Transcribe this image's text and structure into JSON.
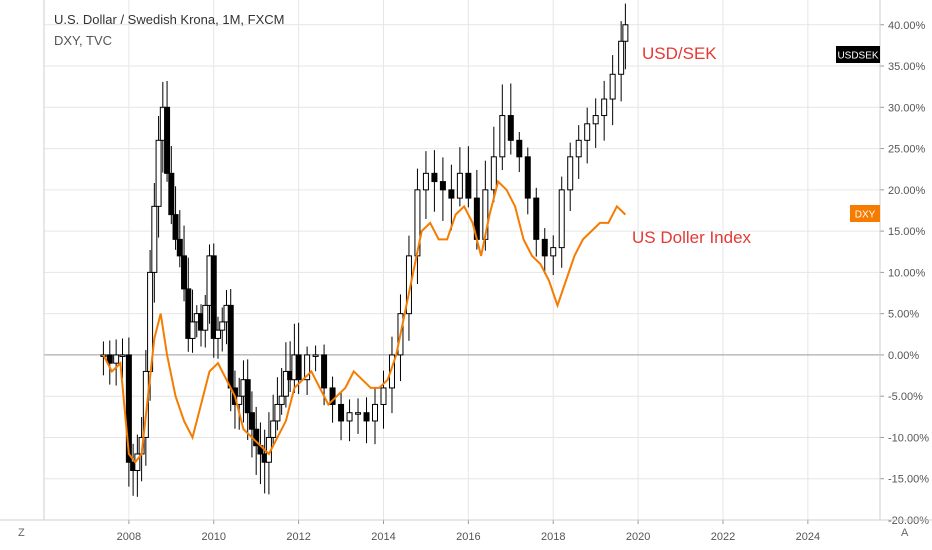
{
  "header": {
    "title": "U.S. Dollar / Swedish Krona, 1M, FXCM",
    "subtitle": "DXY, TVC"
  },
  "corner_left_label": "Z",
  "corner_right_label": "A",
  "annotations": {
    "usdsek": "USD/SEK",
    "dxy": "US Doller Index"
  },
  "colors": {
    "candle": "#000000",
    "dxy_line": "#f57c00",
    "usdsek_text": "#e53935",
    "zero_line": "#9e9e9e",
    "grid": "#e6e6e6"
  },
  "chart_data": {
    "type": "line",
    "y_unit": "%",
    "ylim": [
      -20,
      43
    ],
    "y_ticks": [
      "40.00%",
      "35.00%",
      "30.00%",
      "25.00%",
      "20.00%",
      "15.00%",
      "10.00%",
      "5.00%",
      "0.00%",
      "-5.00%",
      "-10.00%",
      "-15.00%",
      "-20.00%"
    ],
    "y_tick_values": [
      40,
      35,
      30,
      25,
      20,
      15,
      10,
      5,
      0,
      -5,
      -10,
      -15,
      -20
    ],
    "x_ticks": [
      "2008",
      "2010",
      "2012",
      "2014",
      "2016",
      "2018",
      "2020",
      "2022",
      "2024"
    ],
    "x_tick_values": [
      2008,
      2010,
      2012,
      2014,
      2016,
      2018,
      2020,
      2022,
      2024
    ],
    "xlim": [
      2006.0,
      2025.7
    ],
    "grid": true,
    "series": [
      {
        "name": "USDSEK",
        "style": "candlestick-approx",
        "x": [
          2007.4,
          2007.55,
          2007.7,
          2007.85,
          2008.0,
          2008.1,
          2008.2,
          2008.3,
          2008.4,
          2008.5,
          2008.6,
          2008.7,
          2008.8,
          2008.9,
          2009.0,
          2009.1,
          2009.2,
          2009.3,
          2009.4,
          2009.5,
          2009.6,
          2009.7,
          2009.8,
          2009.9,
          2010.0,
          2010.1,
          2010.2,
          2010.3,
          2010.4,
          2010.5,
          2010.6,
          2010.7,
          2010.8,
          2010.9,
          2011.0,
          2011.1,
          2011.2,
          2011.3,
          2011.4,
          2011.5,
          2011.6,
          2011.7,
          2011.8,
          2011.9,
          2012.0,
          2012.2,
          2012.4,
          2012.6,
          2012.8,
          2013.0,
          2013.2,
          2013.4,
          2013.6,
          2013.8,
          2014.0,
          2014.2,
          2014.4,
          2014.6,
          2014.8,
          2015.0,
          2015.2,
          2015.4,
          2015.6,
          2015.8,
          2016.0,
          2016.2,
          2016.4,
          2016.6,
          2016.8,
          2017.0,
          2017.2,
          2017.4,
          2017.6,
          2017.8,
          2018.0,
          2018.2,
          2018.4,
          2018.6,
          2018.8,
          2019.0,
          2019.2,
          2019.4,
          2019.6,
          2019.7
        ],
        "values": [
          0,
          -1,
          0,
          0,
          -13,
          -14,
          -12,
          -10,
          -2,
          10,
          18,
          26,
          30,
          22,
          17,
          14,
          12,
          8,
          2,
          4,
          5,
          3,
          6,
          12,
          2,
          3,
          4,
          6,
          -4,
          -6,
          -5,
          -3,
          -7,
          -9,
          -11,
          -12,
          -13,
          -10,
          -8,
          -6,
          -5,
          -2,
          -3,
          0,
          -3,
          0,
          0,
          -4,
          -6,
          -8,
          -7,
          -7,
          -8,
          -6,
          -4,
          0,
          5,
          12,
          20,
          22,
          21,
          20,
          19,
          22,
          19,
          14,
          20,
          24,
          29,
          26,
          24,
          19,
          14,
          12,
          13,
          20,
          24,
          26,
          28,
          29,
          31,
          34,
          38,
          40
        ]
      },
      {
        "name": "DXY",
        "style": "line",
        "x": [
          2007.4,
          2007.6,
          2007.8,
          2008.0,
          2008.15,
          2008.3,
          2008.45,
          2008.6,
          2008.75,
          2008.9,
          2009.1,
          2009.3,
          2009.5,
          2009.7,
          2009.9,
          2010.1,
          2010.3,
          2010.5,
          2010.7,
          2010.9,
          2011.1,
          2011.3,
          2011.5,
          2011.7,
          2011.9,
          2012.1,
          2012.3,
          2012.5,
          2012.7,
          2012.9,
          2013.1,
          2013.3,
          2013.5,
          2013.7,
          2013.9,
          2014.1,
          2014.3,
          2014.5,
          2014.7,
          2014.9,
          2015.1,
          2015.3,
          2015.5,
          2015.7,
          2015.9,
          2016.1,
          2016.3,
          2016.5,
          2016.7,
          2016.9,
          2017.1,
          2017.3,
          2017.5,
          2017.7,
          2017.9,
          2018.1,
          2018.3,
          2018.5,
          2018.7,
          2018.9,
          2019.1,
          2019.3,
          2019.5,
          2019.7
        ],
        "values": [
          0,
          -2,
          -1,
          -12,
          -13,
          -12,
          -5,
          2,
          5,
          0,
          -5,
          -8,
          -10,
          -6,
          -2,
          -1,
          -3,
          -5,
          -9,
          -10,
          -11,
          -12,
          -10,
          -8,
          -4,
          -3,
          -2,
          -4,
          -6,
          -5,
          -4,
          -2,
          -3,
          -4,
          -4,
          -3,
          0,
          5,
          10,
          15,
          16,
          14,
          14,
          17,
          18,
          16,
          12,
          17,
          21,
          20,
          18,
          14,
          12,
          11,
          9,
          6,
          9,
          12,
          14,
          15,
          16,
          16,
          18,
          17
        ]
      }
    ]
  }
}
